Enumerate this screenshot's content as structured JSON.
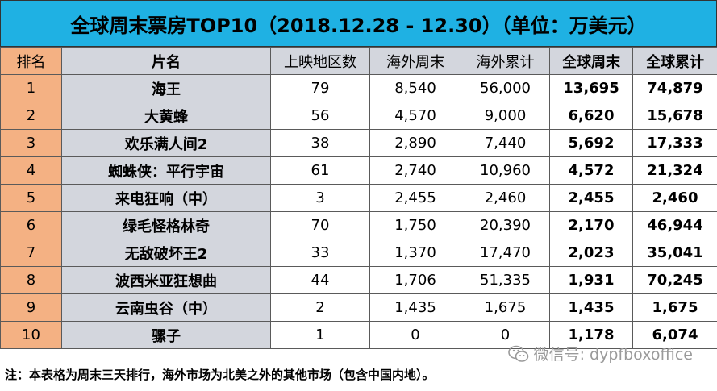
{
  "title": "全球周末票房TOP10（2018.12.28 - 12.30）（单位：万美元）",
  "headers": [
    "排名",
    "片名",
    "上映地区数",
    "海外周末",
    "海外累计",
    "全球周末",
    "全球累计"
  ],
  "rows": [
    {
      "rank": "1",
      "name": "海王",
      "regions": "79",
      "intl_weekend": "8,540",
      "intl_total": "56,000",
      "global_weekend": "13,695",
      "global_total": "74,879"
    },
    {
      "rank": "2",
      "name": "大黄蜂",
      "regions": "56",
      "intl_weekend": "4,570",
      "intl_total": "9,000",
      "global_weekend": "6,620",
      "global_total": "15,678"
    },
    {
      "rank": "3",
      "name": "欢乐满人间2",
      "regions": "38",
      "intl_weekend": "2,890",
      "intl_total": "7,440",
      "global_weekend": "5,692",
      "global_total": "17,333"
    },
    {
      "rank": "4",
      "name": "蜘蛛侠：平行宇宙",
      "regions": "61",
      "intl_weekend": "2,740",
      "intl_total": "10,960",
      "global_weekend": "4,572",
      "global_total": "21,324"
    },
    {
      "rank": "5",
      "name": "来电狂响（中）",
      "regions": "3",
      "intl_weekend": "2,455",
      "intl_total": "2,460",
      "global_weekend": "2,455",
      "global_total": "2,460"
    },
    {
      "rank": "6",
      "name": "绿毛怪格林奇",
      "regions": "70",
      "intl_weekend": "1,750",
      "intl_total": "20,390",
      "global_weekend": "2,170",
      "global_total": "46,944"
    },
    {
      "rank": "7",
      "name": "无敌破坏王2",
      "regions": "33",
      "intl_weekend": "1,370",
      "intl_total": "17,470",
      "global_weekend": "2,023",
      "global_total": "35,041"
    },
    {
      "rank": "8",
      "name": "波西米亚狂想曲",
      "regions": "44",
      "intl_weekend": "1,706",
      "intl_total": "51,335",
      "global_weekend": "1,931",
      "global_total": "70,245"
    },
    {
      "rank": "9",
      "name": "云南虫谷（中）",
      "regions": "2",
      "intl_weekend": "1,435",
      "intl_total": "1,675",
      "global_weekend": "1,435",
      "global_total": "1,675"
    },
    {
      "rank": "10",
      "name": "骡子",
      "regions": "1",
      "intl_weekend": "0",
      "intl_total": "0",
      "global_weekend": "1,178",
      "global_total": "6,074"
    }
  ],
  "note": "注：本表格为周末三天排行，海外市场为北美之外的其他市场（包含中国内地）。",
  "watermark": "微信号: dypfboxoffice",
  "icons": {
    "watermark": "wechat-icon"
  },
  "colors": {
    "title_bg": "#1fb1e3",
    "rank_bg": "#f4b183",
    "name_bg": "#d3d6dd"
  }
}
